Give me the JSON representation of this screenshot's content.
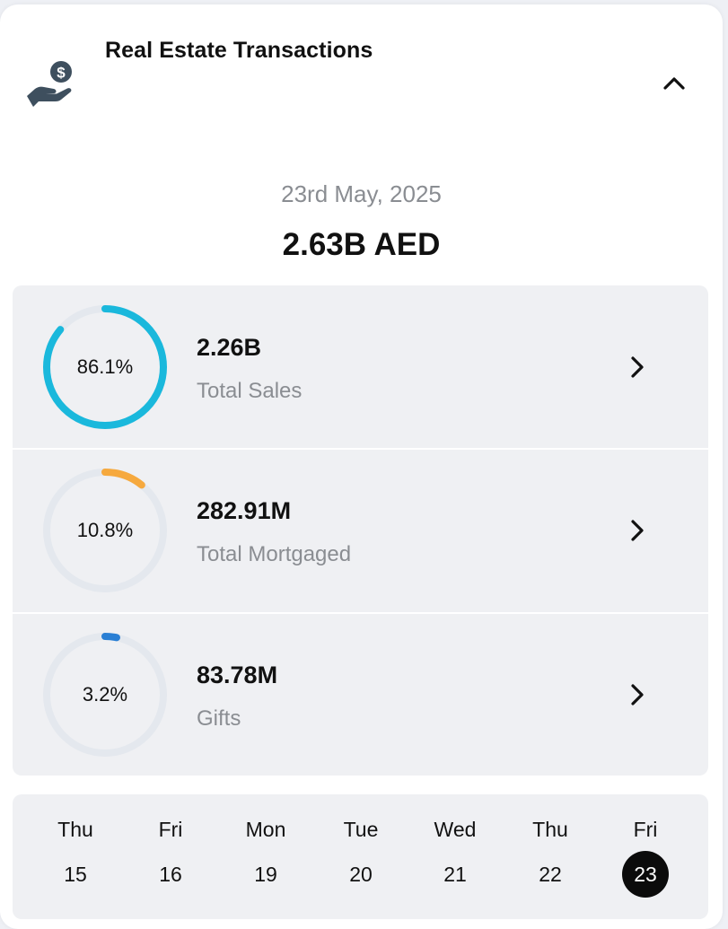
{
  "header": {
    "title": "Real Estate Transactions",
    "icon": "hand-dollar-icon",
    "collapse_icon": "chevron-up-icon"
  },
  "summary": {
    "date": "23rd May, 2025",
    "total": "2.63B AED"
  },
  "stats": [
    {
      "percent_label": "86.1%",
      "percent": 86.1,
      "value": "2.26B",
      "label": "Total Sales",
      "color": "#1ab8dc"
    },
    {
      "percent_label": "10.8%",
      "percent": 10.8,
      "value": "282.91M",
      "label": "Total Mortgaged",
      "color": "#f6a93e"
    },
    {
      "percent_label": "3.2%",
      "percent": 3.2,
      "value": "83.78M",
      "label": "Gifts",
      "color": "#2a7fd4"
    }
  ],
  "days": [
    {
      "name": "Thu",
      "num": "15"
    },
    {
      "name": "Fri",
      "num": "16"
    },
    {
      "name": "Mon",
      "num": "19"
    },
    {
      "name": "Tue",
      "num": "20"
    },
    {
      "name": "Wed",
      "num": "21"
    },
    {
      "name": "Thu",
      "num": "22"
    },
    {
      "name": "Fri",
      "num": "23"
    }
  ],
  "selected_day_index": 6,
  "colors": {
    "ring_track": "#e4e8ee",
    "muted_text": "#8a8d92",
    "selected_day_bg": "#0b0b0b",
    "icon_color": "#3e4f5e"
  }
}
